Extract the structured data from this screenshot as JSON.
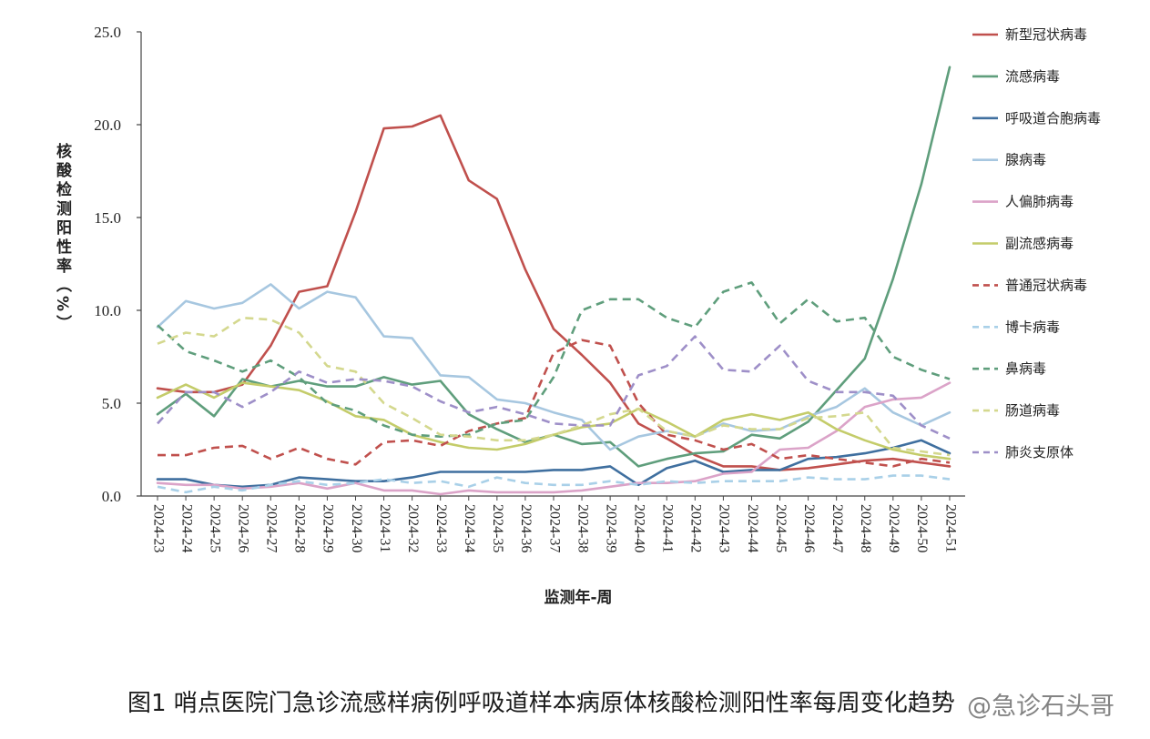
{
  "chart_data": {
    "type": "line",
    "xlabel": "监测年-周",
    "ylabel": "核酸检测阳性率（%）",
    "ylim": [
      0,
      25
    ],
    "yticks": [
      "0.0",
      "5.0",
      "10.0",
      "15.0",
      "20.0",
      "25.0"
    ],
    "grid": false,
    "legend_position": "right",
    "categories": [
      "2024-23",
      "2024-24",
      "2024-25",
      "2024-26",
      "2024-27",
      "2024-28",
      "2024-29",
      "2024-30",
      "2024-31",
      "2024-32",
      "2024-33",
      "2024-34",
      "2024-35",
      "2024-36",
      "2024-37",
      "2024-38",
      "2024-39",
      "2024-40",
      "2024-41",
      "2024-42",
      "2024-43",
      "2024-44",
      "2024-45",
      "2024-46",
      "2024-47",
      "2024-48",
      "2024-49",
      "2024-50",
      "2024-51"
    ],
    "series": [
      {
        "name": "新型冠状病毒",
        "color": "#c0504d",
        "style": "solid",
        "values": [
          5.8,
          5.6,
          5.6,
          6.0,
          8.1,
          11.0,
          11.3,
          15.3,
          19.8,
          19.9,
          20.5,
          17.0,
          16.0,
          12.2,
          9.0,
          7.6,
          6.1,
          3.9,
          3.1,
          2.2,
          1.6,
          1.6,
          1.4,
          1.5,
          1.7,
          1.9,
          2.0,
          1.8,
          1.6
        ]
      },
      {
        "name": "流感病毒",
        "color": "#5f9e7c",
        "style": "solid",
        "values": [
          4.4,
          5.5,
          4.3,
          6.3,
          5.9,
          6.2,
          5.9,
          5.9,
          6.4,
          6.0,
          6.2,
          4.4,
          3.6,
          2.9,
          3.3,
          2.8,
          2.9,
          1.6,
          2.0,
          2.3,
          2.4,
          3.3,
          3.1,
          4.0,
          5.7,
          7.4,
          11.7,
          16.8,
          23.1
        ]
      },
      {
        "name": "呼吸道合胞病毒",
        "color": "#3f6f9f",
        "style": "solid",
        "values": [
          0.9,
          0.9,
          0.6,
          0.5,
          0.6,
          1.0,
          0.9,
          0.8,
          0.8,
          1.0,
          1.3,
          1.3,
          1.3,
          1.3,
          1.4,
          1.4,
          1.6,
          0.6,
          1.5,
          1.9,
          1.3,
          1.4,
          1.4,
          2.0,
          2.1,
          2.3,
          2.6,
          3.0,
          2.3
        ]
      },
      {
        "name": "腺病毒",
        "color": "#a7c7e0",
        "style": "solid",
        "values": [
          9.1,
          10.5,
          10.1,
          10.4,
          11.4,
          10.1,
          11.0,
          10.7,
          8.6,
          8.5,
          6.5,
          6.4,
          5.2,
          5.0,
          4.5,
          4.1,
          2.5,
          3.2,
          3.5,
          3.2,
          3.9,
          3.5,
          3.6,
          4.3,
          4.8,
          5.8,
          4.5,
          3.8,
          4.5
        ]
      },
      {
        "name": "人偏肺病毒",
        "color": "#dba3c8",
        "style": "solid",
        "values": [
          0.7,
          0.6,
          0.6,
          0.4,
          0.5,
          0.7,
          0.4,
          0.7,
          0.3,
          0.3,
          0.1,
          0.3,
          0.2,
          0.2,
          0.2,
          0.3,
          0.5,
          0.7,
          0.7,
          0.8,
          1.2,
          1.3,
          2.5,
          2.6,
          3.5,
          4.8,
          5.2,
          5.3,
          6.1
        ]
      },
      {
        "name": "副流感病毒",
        "color": "#c4cc6a",
        "style": "solid",
        "values": [
          5.3,
          6.0,
          5.3,
          6.1,
          5.9,
          5.7,
          5.1,
          4.3,
          4.1,
          3.3,
          2.9,
          2.6,
          2.5,
          2.8,
          3.3,
          3.7,
          3.9,
          4.7,
          4.0,
          3.2,
          4.1,
          4.4,
          4.1,
          4.5,
          3.6,
          3.0,
          2.5,
          2.2,
          2.0
        ]
      },
      {
        "name": "普通冠状病毒",
        "color": "#c0504d",
        "style": "dashed",
        "values": [
          2.2,
          2.2,
          2.6,
          2.7,
          2.0,
          2.6,
          2.0,
          1.7,
          2.9,
          3.0,
          2.7,
          3.5,
          3.9,
          4.2,
          7.7,
          8.4,
          8.1,
          5.0,
          3.3,
          3.0,
          2.5,
          2.8,
          2.0,
          2.2,
          2.0,
          1.8,
          1.6,
          2.0,
          1.8
        ]
      },
      {
        "name": "博卡病毒",
        "color": "#a9d0e8",
        "style": "dashed",
        "values": [
          0.5,
          0.2,
          0.5,
          0.3,
          0.6,
          0.8,
          0.6,
          0.7,
          0.9,
          0.7,
          0.8,
          0.5,
          1.0,
          0.7,
          0.6,
          0.6,
          0.8,
          0.6,
          0.8,
          0.7,
          0.8,
          0.8,
          0.8,
          1.0,
          0.9,
          0.9,
          1.1,
          1.1,
          0.9
        ]
      },
      {
        "name": "鼻病毒",
        "color": "#5f9e7c",
        "style": "dashed",
        "values": [
          9.2,
          7.8,
          7.3,
          6.7,
          7.3,
          6.4,
          5.0,
          4.6,
          3.8,
          3.3,
          3.2,
          3.3,
          3.9,
          4.1,
          6.4,
          10.0,
          10.6,
          10.6,
          9.6,
          9.1,
          11.0,
          11.5,
          9.3,
          10.6,
          9.4,
          9.6,
          7.5,
          6.8,
          6.3
        ]
      },
      {
        "name": "肠道病毒",
        "color": "#d4d88e",
        "style": "dashed",
        "values": [
          8.2,
          8.8,
          8.6,
          9.6,
          9.5,
          8.8,
          7.0,
          6.7,
          5.0,
          4.2,
          3.3,
          3.2,
          3.0,
          3.0,
          3.3,
          3.8,
          4.4,
          4.7,
          3.5,
          3.2,
          3.8,
          3.6,
          3.6,
          4.2,
          4.3,
          4.5,
          2.6,
          2.4,
          2.2
        ]
      },
      {
        "name": "肺炎支原体",
        "color": "#9e8fc8",
        "style": "dashed",
        "values": [
          3.9,
          5.6,
          5.6,
          4.8,
          5.6,
          6.7,
          6.1,
          6.3,
          6.2,
          5.9,
          5.1,
          4.5,
          4.8,
          4.4,
          3.9,
          3.8,
          3.8,
          6.5,
          7.0,
          8.6,
          6.8,
          6.7,
          8.1,
          6.2,
          5.6,
          5.6,
          5.4,
          3.8,
          3.1
        ]
      }
    ]
  },
  "caption": "图1 哨点医院门急诊流感样病例呼吸道样本病原体核酸检测阳性率每周变化趋势",
  "watermark": "@急诊石头哥"
}
